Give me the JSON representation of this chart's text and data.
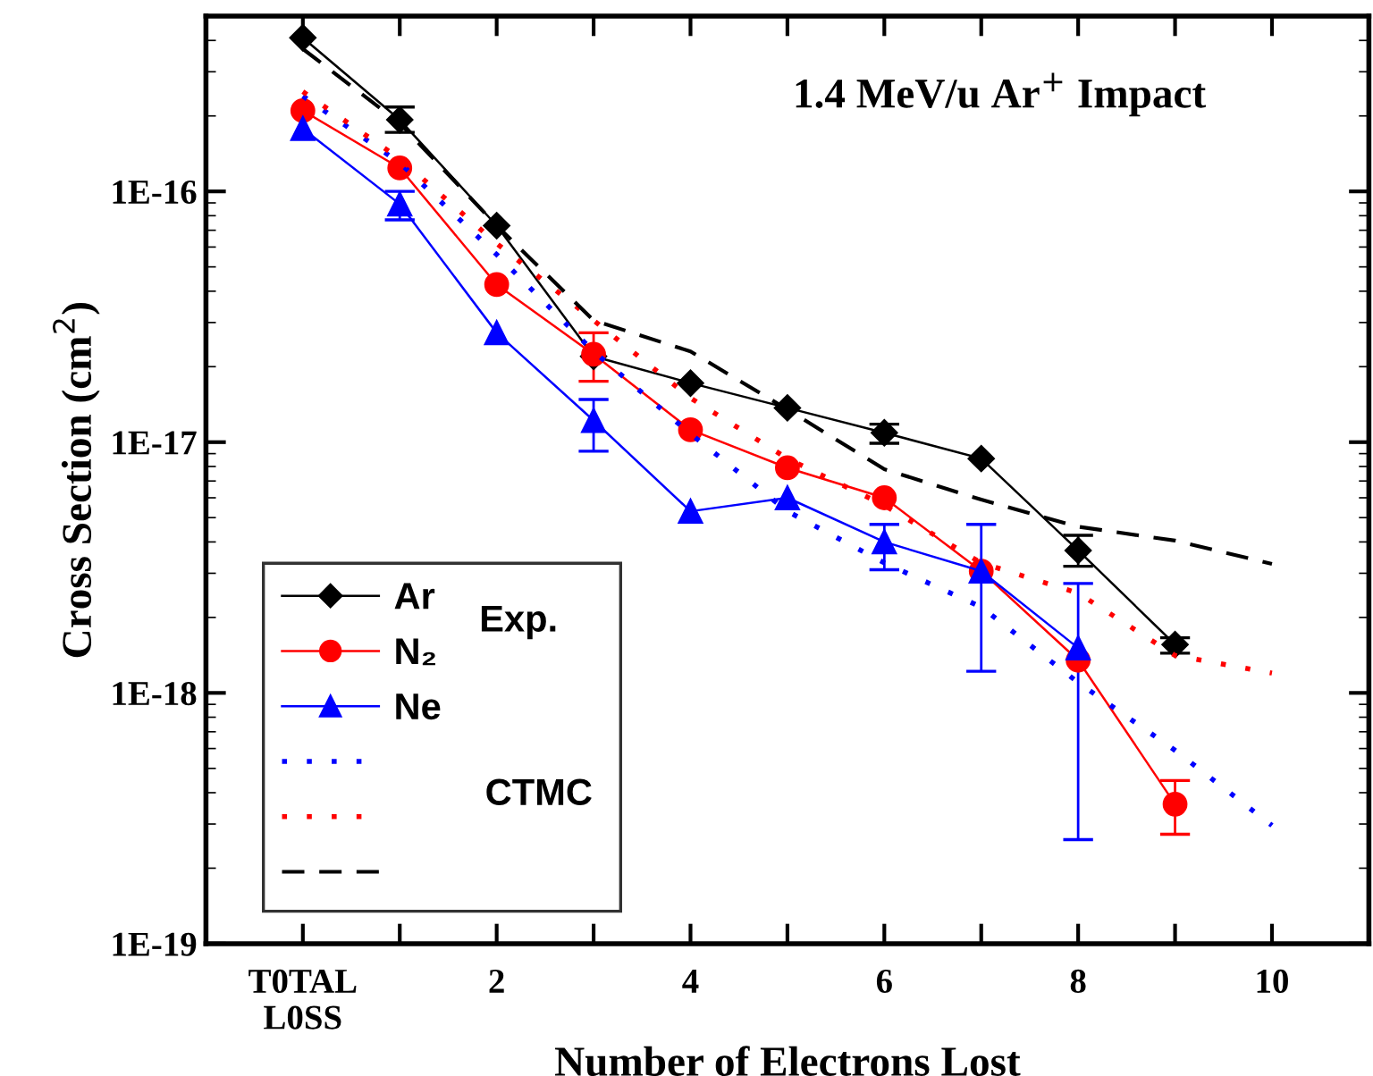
{
  "chart_data": {
    "type": "line",
    "title": "1.4 MeV/u Ar$^{+}$ Impact",
    "xlabel": "Number of Electrons Lost",
    "ylabel": "Cross Section (cm$^{2}$)",
    "log": "y",
    "xlim": [
      -1,
      11
    ],
    "ylim": [
      1e-19,
      5e-16
    ],
    "xticks": [
      {
        "value": 0,
        "label": "T0TAL\nL0SS"
      },
      {
        "value": 1,
        "label": null
      },
      2,
      {
        "value": 3,
        "label": null
      },
      4,
      {
        "value": 5,
        "label": null
      },
      6,
      {
        "value": 7,
        "label": null
      },
      8,
      {
        "value": 9,
        "label": null
      },
      10
    ],
    "yticks": [
      {
        "value": 1e-19,
        "label": "1E-19"
      },
      {
        "value": 1e-18,
        "label": "1E-18"
      },
      {
        "value": 1e-17,
        "label": "1E-17"
      },
      {
        "value": 1e-16,
        "label": "1E-16"
      }
    ],
    "grid": false,
    "legend": "bottom left",
    "annotations": [
      "Exp.",
      "CTMC"
    ],
    "series": [
      {
        "name": "Ar",
        "color": "#000000",
        "marker": "diamond",
        "line_style": "solid",
        "x": [
          0,
          1,
          2,
          3,
          4,
          5,
          6,
          7,
          8,
          9
        ],
        "values": [
          4.1e-16,
          1.93e-16,
          7.3e-17,
          2.2e-17,
          1.72e-17,
          1.37e-17,
          1.09e-17,
          8.6e-18,
          3.7e-18,
          1.56e-18
        ],
        "errors": [
          null,
          [
            1.72e-16,
            2.17e-16
          ],
          null,
          null,
          null,
          null,
          [
            9.9e-18,
            1.18e-17
          ],
          null,
          [
            3.2e-18,
            4.25e-18
          ],
          [
            1.44e-18,
            1.66e-18
          ]
        ]
      },
      {
        "name": "N₂",
        "color": "#ff0000",
        "marker": "circle",
        "line_style": "solid",
        "x": [
          0,
          1,
          2,
          3,
          4,
          5,
          6,
          7,
          8,
          9
        ],
        "values": [
          2.1e-16,
          1.24e-16,
          4.25e-17,
          2.24e-17,
          1.12e-17,
          7.9e-18,
          6e-18,
          3.06e-18,
          1.35e-18,
          3.6e-19
        ],
        "errors": [
          null,
          null,
          null,
          [
            1.75e-17,
            2.73e-17
          ],
          null,
          null,
          null,
          null,
          null,
          [
            2.73e-19,
            4.47e-19
          ]
        ]
      },
      {
        "name": "Ne",
        "color": "#0000ff",
        "marker": "triangle",
        "line_style": "solid",
        "x": [
          0,
          1,
          2,
          3,
          4,
          5,
          6,
          7,
          8
        ],
        "values": [
          1.78e-16,
          8.9e-17,
          2.73e-17,
          1.22e-17,
          5.3e-18,
          6e-18,
          4e-18,
          3.06e-18,
          1.51e-18
        ],
        "errors": [
          null,
          [
            7.7e-17,
            1e-16
          ],
          null,
          [
            9.2e-18,
            1.48e-17
          ],
          null,
          null,
          [
            3.1e-18,
            4.7e-18
          ],
          [
            1.22e-18,
            4.7e-18
          ],
          [
            2.6e-19,
            2.73e-18
          ]
        ]
      },
      {
        "color": "#0000ff",
        "marker": "none",
        "line_style": "dotted",
        "x": [
          0,
          1,
          2,
          3,
          4,
          5,
          6,
          7,
          8,
          9,
          10
        ],
        "values": [
          2.4e-16,
          1.3e-16,
          5.6e-17,
          2.3e-17,
          1.08e-17,
          5.3e-18,
          3.3e-18,
          2.2e-18,
          1.1e-18,
          5.9e-19,
          2.96e-19
        ]
      },
      {
        "color": "#ff0000",
        "marker": "none",
        "line_style": "dotted",
        "x": [
          0,
          1,
          2,
          3,
          4,
          5,
          6,
          7,
          8,
          9,
          10
        ],
        "values": [
          2.5e-16,
          1.35e-16,
          6.2e-17,
          3.06e-17,
          1.5e-17,
          8.6e-18,
          5.6e-18,
          3.3e-18,
          2.5e-18,
          1.41e-18,
          1.2e-18
        ]
      },
      {
        "color": "#000000",
        "marker": "none",
        "line_style": "dashed",
        "x": [
          0,
          1,
          2,
          3,
          4,
          5,
          6,
          7,
          8,
          9,
          10
        ],
        "values": [
          3.7e-16,
          1.87e-16,
          7.3e-17,
          3.06e-17,
          2.3e-17,
          1.35e-17,
          7.8e-18,
          5.9e-18,
          4.6e-18,
          4.05e-18,
          3.27e-18
        ]
      }
    ]
  }
}
